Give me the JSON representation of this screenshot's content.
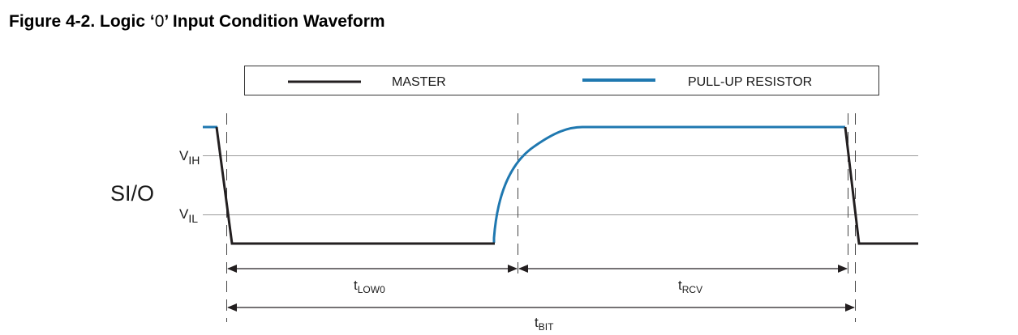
{
  "figure": {
    "title_prefix": "Figure 4-2.  Logic ‘",
    "title_zero": "0",
    "title_suffix": "’ Input Condition Waveform"
  },
  "legend": {
    "master_label": "MASTER",
    "pullup_label": "PULL-UP RESISTOR"
  },
  "signal": {
    "name": "SI/O",
    "vih_main": "V",
    "vih_sub": "IH",
    "vil_main": "V",
    "vil_sub": "IL"
  },
  "timing": {
    "tlow0_main": "t",
    "tlow0_sub": "LOW0",
    "trcv_main": "t",
    "trcv_sub": "RCV",
    "tbit_main": "t",
    "tbit_sub": "BIT"
  },
  "colors": {
    "master": "#231f20",
    "pullup": "#1f78b0",
    "reference": "#9a9a9a"
  }
}
